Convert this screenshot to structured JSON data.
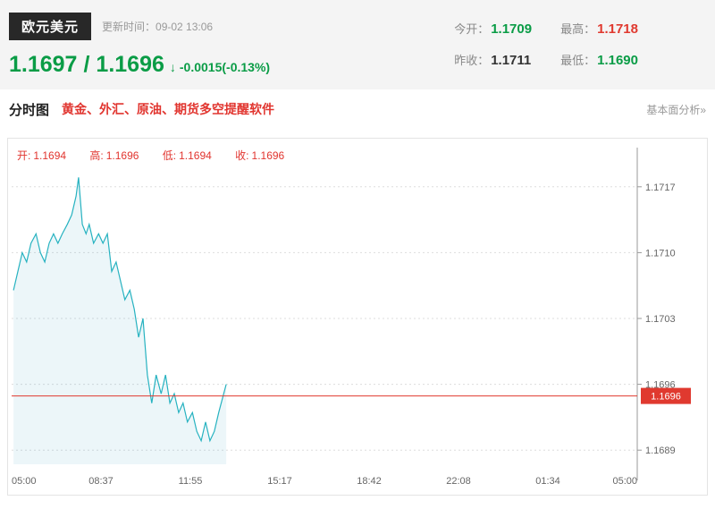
{
  "header": {
    "symbol": "欧元美元",
    "update_time": "更新时间：09-02 13:06",
    "price_main": "1.1697",
    "price_sep": "/",
    "price_last": "1.1696",
    "arrow": "↓",
    "change": "-0.0015(-0.13%)",
    "colors": {
      "up": "#e0392f",
      "down": "#0a9c46",
      "neutral": "#333333"
    },
    "stats": [
      {
        "label": "今开：",
        "value": "1.1709",
        "color": "green"
      },
      {
        "label": "最高：",
        "value": "1.1718",
        "color": "red"
      },
      {
        "label": "昨收：",
        "value": "1.1711",
        "color": "dark"
      },
      {
        "label": "最低：",
        "value": "1.1690",
        "color": "green"
      }
    ]
  },
  "nav": {
    "tab": "分时图",
    "promo": "黄金、外汇、原油、期货多空提醒软件",
    "analysis_link": "基本面分析»"
  },
  "chart_data": {
    "type": "line",
    "title": "欧元美元 分时图",
    "ohlc": [
      {
        "label": "开:",
        "value": "1.1694"
      },
      {
        "label": "高:",
        "value": "1.1696"
      },
      {
        "label": "低:",
        "value": "1.1694"
      },
      {
        "label": "收:",
        "value": "1.1696"
      }
    ],
    "x_ticks": [
      "05:00",
      "08:37",
      "11:55",
      "15:17",
      "18:42",
      "22:08",
      "01:34",
      "05:00"
    ],
    "y_ticks": [
      1.1717,
      1.171,
      1.1703,
      1.1696,
      1.1689
    ],
    "y_min": 1.16875,
    "y_max": 1.17185,
    "current_price": "1.1696",
    "line_color": "#26b2c0",
    "fill_color": "rgba(70,170,200,0.10)",
    "price_line_color": "#e0392f",
    "grid": true,
    "legend": "none",
    "series": [
      {
        "name": "price",
        "points": [
          [
            0.003,
            1.1706
          ],
          [
            0.01,
            1.1708
          ],
          [
            0.017,
            1.171
          ],
          [
            0.024,
            1.1709
          ],
          [
            0.031,
            1.1711
          ],
          [
            0.039,
            1.1712
          ],
          [
            0.046,
            1.171
          ],
          [
            0.053,
            1.1709
          ],
          [
            0.06,
            1.1711
          ],
          [
            0.067,
            1.1712
          ],
          [
            0.074,
            1.1711
          ],
          [
            0.081,
            1.1712
          ],
          [
            0.089,
            1.1713
          ],
          [
            0.096,
            1.1714
          ],
          [
            0.103,
            1.1716
          ],
          [
            0.107,
            1.1718
          ],
          [
            0.113,
            1.1713
          ],
          [
            0.119,
            1.1712
          ],
          [
            0.124,
            1.1713
          ],
          [
            0.131,
            1.1711
          ],
          [
            0.139,
            1.1712
          ],
          [
            0.146,
            1.1711
          ],
          [
            0.153,
            1.1712
          ],
          [
            0.16,
            1.1708
          ],
          [
            0.167,
            1.1709
          ],
          [
            0.174,
            1.1707
          ],
          [
            0.181,
            1.1705
          ],
          [
            0.189,
            1.1706
          ],
          [
            0.196,
            1.1704
          ],
          [
            0.203,
            1.1701
          ],
          [
            0.21,
            1.1703
          ],
          [
            0.217,
            1.1697
          ],
          [
            0.224,
            1.1694
          ],
          [
            0.231,
            1.1697
          ],
          [
            0.239,
            1.1695
          ],
          [
            0.246,
            1.1697
          ],
          [
            0.253,
            1.1694
          ],
          [
            0.26,
            1.1695
          ],
          [
            0.267,
            1.1693
          ],
          [
            0.274,
            1.1694
          ],
          [
            0.281,
            1.1692
          ],
          [
            0.289,
            1.1693
          ],
          [
            0.296,
            1.1691
          ],
          [
            0.303,
            1.169
          ],
          [
            0.31,
            1.1692
          ],
          [
            0.317,
            1.169
          ],
          [
            0.324,
            1.1691
          ],
          [
            0.331,
            1.1693
          ],
          [
            0.339,
            1.1695
          ],
          [
            0.343,
            1.1696
          ]
        ]
      }
    ]
  }
}
